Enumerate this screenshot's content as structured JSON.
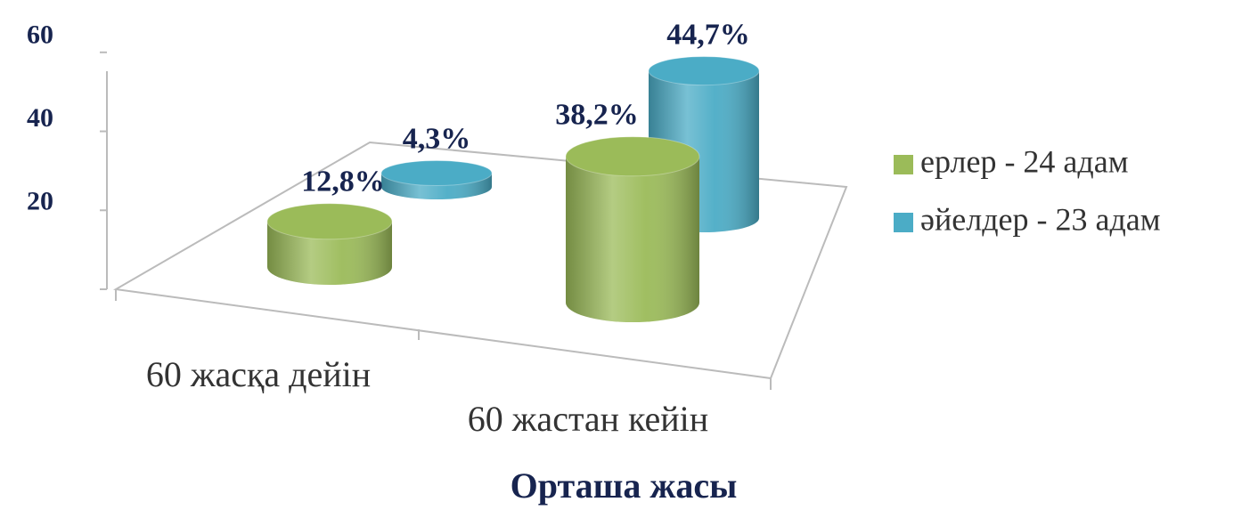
{
  "chart_data": {
    "type": "bar3d",
    "x_label": "Орташа жасы",
    "categories": [
      "60 жасқа дейін",
      "60 жастан кейін"
    ],
    "series": [
      {
        "name": "ерлер - 24 адам",
        "color": "#9bbb59",
        "values": [
          12.8,
          38.2
        ],
        "value_labels": [
          "12,8%",
          "38,2%"
        ]
      },
      {
        "name": "әйелдер - 23 адам",
        "color": "#4bacc6",
        "values": [
          4.3,
          44.7
        ],
        "value_labels": [
          "4,3%",
          "44,7%"
        ]
      }
    ],
    "ylim": [
      0,
      60
    ],
    "yticks": [
      20,
      40,
      60
    ]
  }
}
